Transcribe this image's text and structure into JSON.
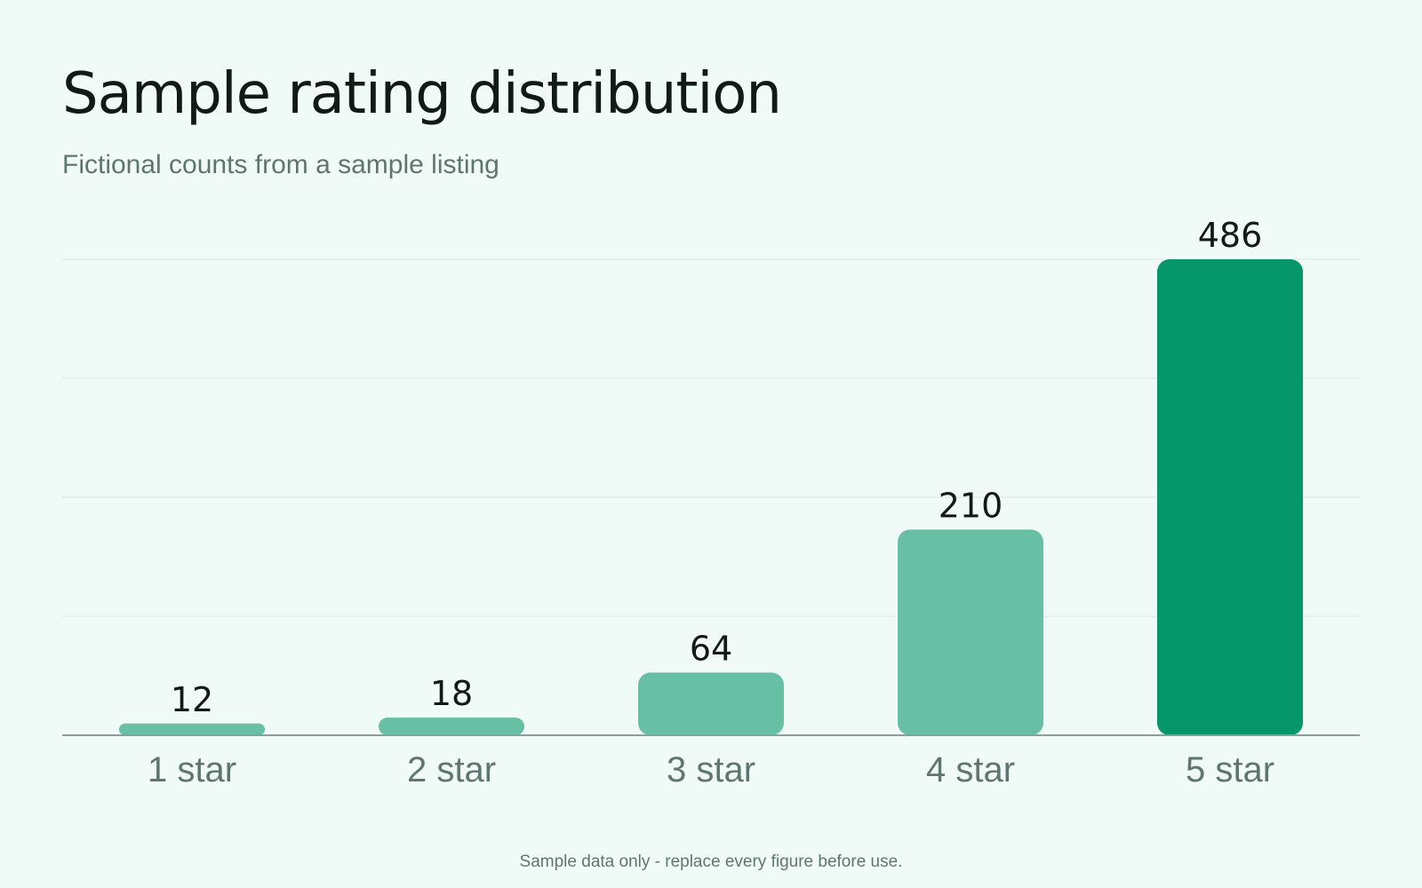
{
  "header": {
    "title": "Sample rating distribution",
    "subtitle": "Fictional counts from a sample listing"
  },
  "footer": {
    "note": "Sample data only - replace every figure before use."
  },
  "colors": {
    "background": "#f0faf6",
    "bar": "#68c0a4",
    "bar_highlight": "#059669",
    "text": "#111a17",
    "muted_text": "#5f7670",
    "grid": "#d8e8e1"
  },
  "chart_data": {
    "type": "bar",
    "categories": [
      "1 star",
      "2 star",
      "3 star",
      "4 star",
      "5 star"
    ],
    "values": [
      12,
      18,
      64,
      210,
      486
    ],
    "title": "Sample rating distribution",
    "subtitle": "Fictional counts from a sample listing",
    "ylim": [
      0,
      486
    ],
    "grid": true,
    "highlight_index": 4,
    "data_labels": true
  }
}
